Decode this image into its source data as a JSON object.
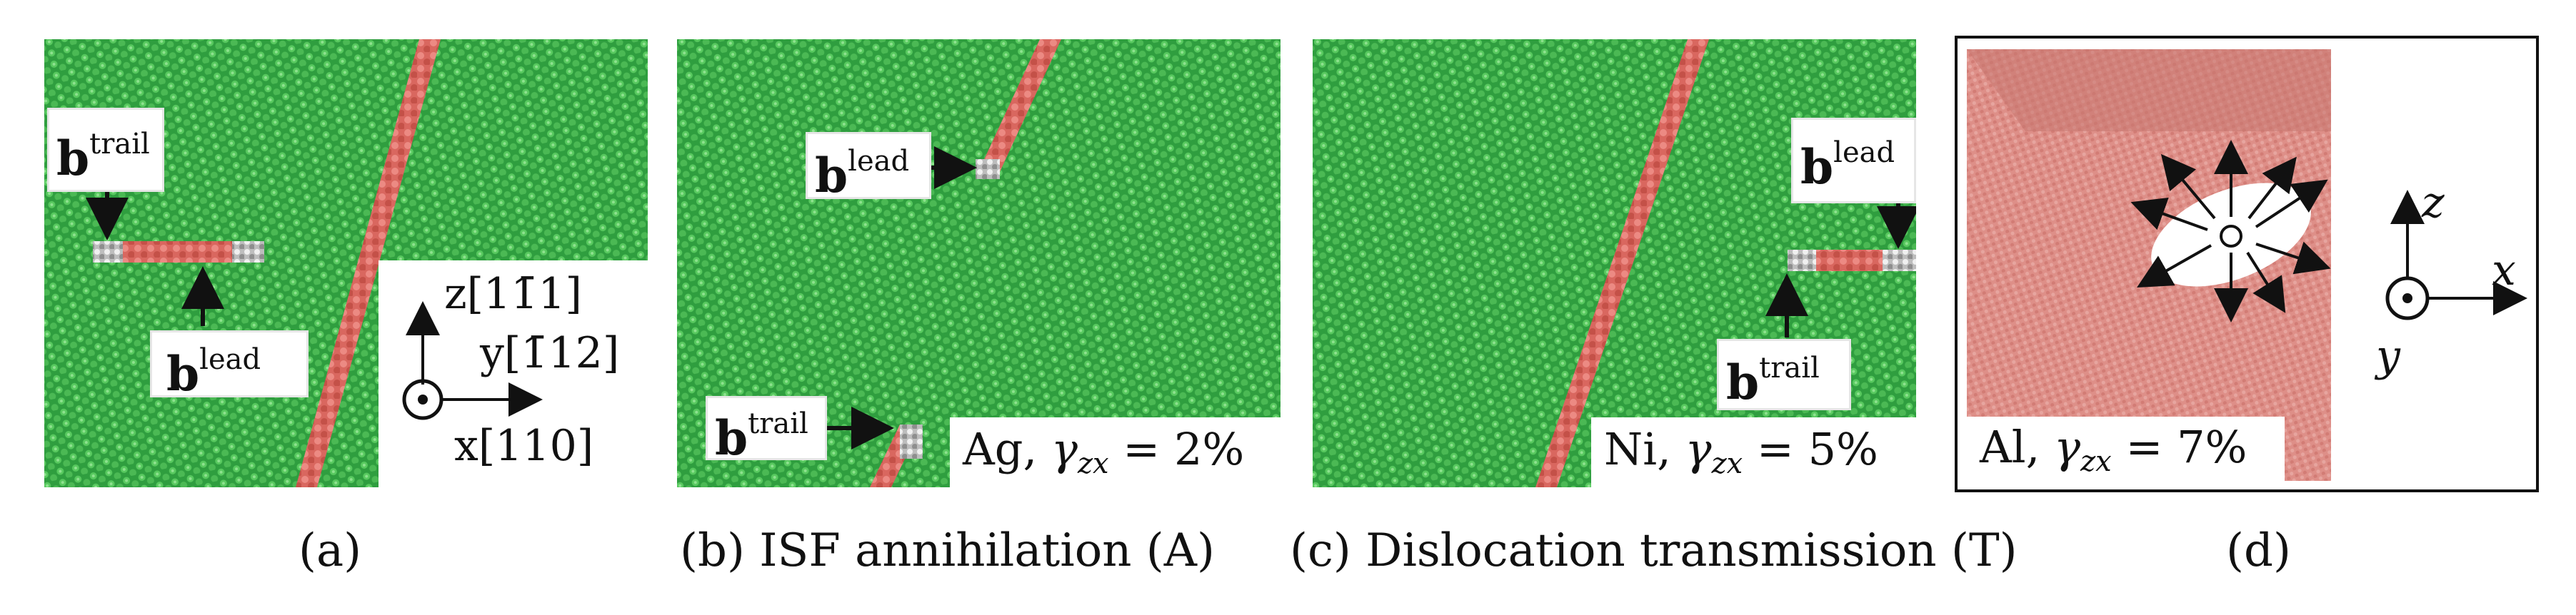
{
  "colors": {
    "atom_green": "#2f9e3f",
    "atom_green_light": "#58c95f",
    "fault_red": "#e07670",
    "fault_red_dark": "#b9463f",
    "al_pink": "#de8f88",
    "void_white": "#ffffff"
  },
  "panels": {
    "a": {
      "caption": "(a)",
      "b_trail": {
        "base": "b",
        "sup": "trail"
      },
      "b_lead": {
        "base": "b",
        "sup": "lead"
      },
      "axes": {
        "z": "z[11̄1]",
        "y": "y[1̄12]",
        "x": "x[110]"
      }
    },
    "b": {
      "caption": "(b) ISF annihilation (A)",
      "b_lead": {
        "base": "b",
        "sup": "lead"
      },
      "b_trail": {
        "base": "b",
        "sup": "trail"
      },
      "material": "Ag, ",
      "gamma": "γ",
      "gamma_sub": "zx",
      "strain": " = 2%"
    },
    "c": {
      "caption": "(c) Dislocation transmission (T)",
      "b_lead": {
        "base": "b",
        "sup": "lead"
      },
      "b_trail": {
        "base": "b",
        "sup": "trail"
      },
      "material": "Ni, ",
      "gamma": "γ",
      "gamma_sub": "zx",
      "strain": " = 5%"
    },
    "d": {
      "caption": "(d)",
      "material": "Al, ",
      "gamma": "γ",
      "gamma_sub": "zx",
      "strain": " = 7%",
      "axes": {
        "z": "z",
        "x": "x",
        "y": "y"
      }
    }
  }
}
